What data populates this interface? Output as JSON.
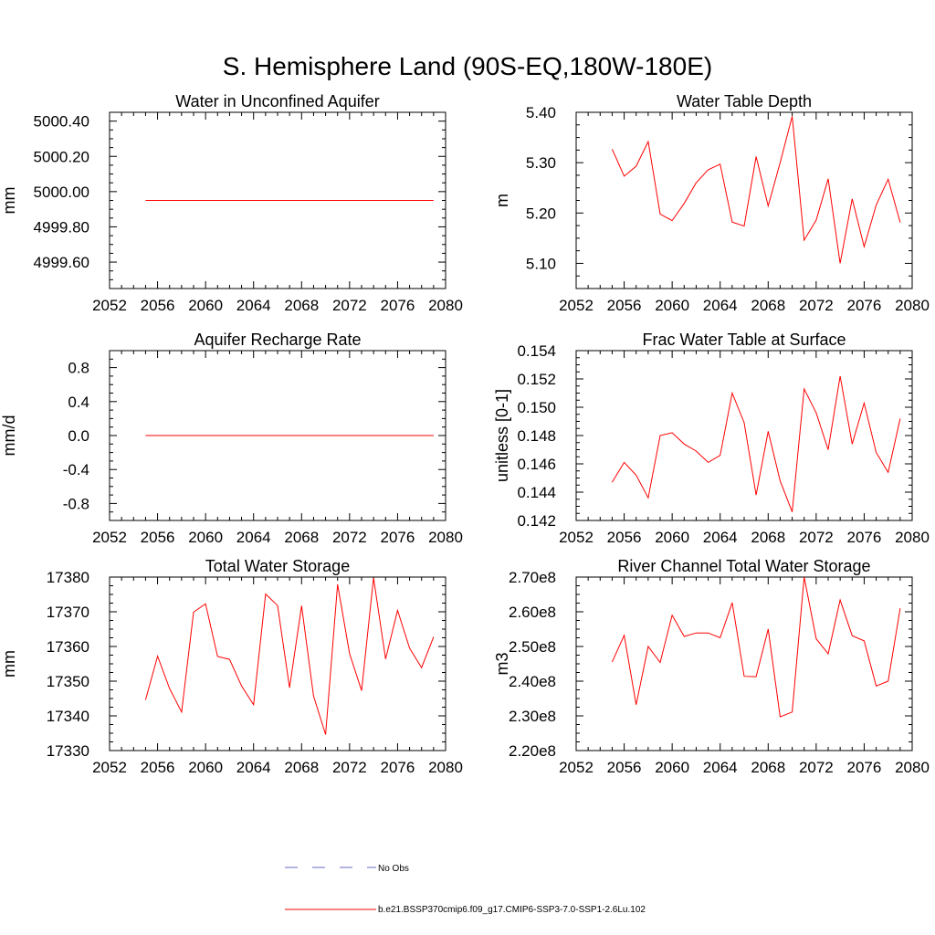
{
  "main_title": "S. Hemisphere Land (90S-EQ,180W-180E)",
  "legend": {
    "obs_label": "No Obs",
    "obs_color": "#6a6ac8",
    "model_label": "b.e21.BSSP370cmip6.f09_g17.CMIP6-SSP3-7.0-SSP1-2.6Lu.102",
    "model_color": "#ff0000"
  },
  "chart_data": [
    {
      "type": "line",
      "title": "Water in Unconfined Aquifer",
      "ylabel": "mm",
      "xlim": [
        2052,
        2080
      ],
      "ylim": [
        4999.45,
        5000.45
      ],
      "xticks": [
        "2052",
        "2056",
        "2060",
        "2064",
        "2068",
        "2072",
        "2076",
        "2080"
      ],
      "yticks": [
        {
          "v": 5000.4,
          "label": "5000.40"
        },
        {
          "v": 5000.2,
          "label": "5000.20"
        },
        {
          "v": 5000.0,
          "label": "5000.00"
        },
        {
          "v": 4999.8,
          "label": "4999.80"
        },
        {
          "v": 4999.6,
          "label": "4999.60"
        }
      ],
      "x": [
        2055,
        2056,
        2057,
        2058,
        2059,
        2060,
        2061,
        2062,
        2063,
        2064,
        2065,
        2066,
        2067,
        2068,
        2069,
        2070,
        2071,
        2072,
        2073,
        2074,
        2075,
        2076,
        2077,
        2078,
        2079
      ],
      "values": [
        4999.95,
        4999.95,
        4999.95,
        4999.95,
        4999.95,
        4999.95,
        4999.95,
        4999.95,
        4999.95,
        4999.95,
        4999.95,
        4999.95,
        4999.95,
        4999.95,
        4999.95,
        4999.95,
        4999.95,
        4999.95,
        4999.95,
        4999.95,
        4999.95,
        4999.95,
        4999.95,
        4999.95,
        4999.95
      ]
    },
    {
      "type": "line",
      "title": "Water Table Depth",
      "ylabel": "m",
      "xlim": [
        2052,
        2080
      ],
      "ylim": [
        5.05,
        5.4
      ],
      "xticks": [
        "2052",
        "2056",
        "2060",
        "2064",
        "2068",
        "2072",
        "2076",
        "2080"
      ],
      "yticks": [
        {
          "v": 5.4,
          "label": "5.40"
        },
        {
          "v": 5.3,
          "label": "5.30"
        },
        {
          "v": 5.2,
          "label": "5.20"
        },
        {
          "v": 5.1,
          "label": "5.10"
        }
      ],
      "x": [
        2055,
        2056,
        2057,
        2058,
        2059,
        2060,
        2061,
        2062,
        2063,
        2064,
        2065,
        2066,
        2067,
        2068,
        2069,
        2070,
        2071,
        2072,
        2073,
        2074,
        2075,
        2076,
        2077,
        2078,
        2079
      ],
      "values": [
        5.327,
        5.273,
        5.293,
        5.342,
        5.198,
        5.185,
        5.219,
        5.26,
        5.286,
        5.297,
        5.182,
        5.174,
        5.312,
        5.214,
        5.3,
        5.392,
        5.146,
        5.186,
        5.268,
        5.1,
        5.228,
        5.133,
        5.216,
        5.267,
        5.181
      ]
    },
    {
      "type": "line",
      "title": "Aquifer Recharge Rate",
      "ylabel": "mm/d",
      "xlim": [
        2052,
        2080
      ],
      "ylim": [
        -1.0,
        1.0
      ],
      "xticks": [
        "2052",
        "2056",
        "2060",
        "2064",
        "2068",
        "2072",
        "2076",
        "2080"
      ],
      "yticks": [
        {
          "v": 0.8,
          "label": "0.8"
        },
        {
          "v": 0.4,
          "label": "0.4"
        },
        {
          "v": 0.0,
          "label": "0.0"
        },
        {
          "v": -0.4,
          "label": "-0.4"
        },
        {
          "v": -0.8,
          "label": "-0.8"
        }
      ],
      "x": [
        2055,
        2056,
        2057,
        2058,
        2059,
        2060,
        2061,
        2062,
        2063,
        2064,
        2065,
        2066,
        2067,
        2068,
        2069,
        2070,
        2071,
        2072,
        2073,
        2074,
        2075,
        2076,
        2077,
        2078,
        2079
      ],
      "values": [
        0,
        0,
        0,
        0,
        0,
        0,
        0,
        0,
        0,
        0,
        0,
        0,
        0,
        0,
        0,
        0,
        0,
        0,
        0,
        0,
        0,
        0,
        0,
        0,
        0
      ]
    },
    {
      "type": "line",
      "title": "Frac Water Table at Surface",
      "ylabel": "unitless [0-1]",
      "xlim": [
        2052,
        2080
      ],
      "ylim": [
        0.142,
        0.154
      ],
      "xticks": [
        "2052",
        "2056",
        "2060",
        "2064",
        "2068",
        "2072",
        "2076",
        "2080"
      ],
      "yticks": [
        {
          "v": 0.154,
          "label": "0.154"
        },
        {
          "v": 0.152,
          "label": "0.152"
        },
        {
          "v": 0.15,
          "label": "0.150"
        },
        {
          "v": 0.148,
          "label": "0.148"
        },
        {
          "v": 0.146,
          "label": "0.146"
        },
        {
          "v": 0.144,
          "label": "0.144"
        },
        {
          "v": 0.142,
          "label": "0.142"
        }
      ],
      "x": [
        2055,
        2056,
        2057,
        2058,
        2059,
        2060,
        2061,
        2062,
        2063,
        2064,
        2065,
        2066,
        2067,
        2068,
        2069,
        2070,
        2071,
        2072,
        2073,
        2074,
        2075,
        2076,
        2077,
        2078,
        2079
      ],
      "values": [
        0.1447,
        0.1461,
        0.1452,
        0.1436,
        0.148,
        0.1482,
        0.1474,
        0.1469,
        0.1461,
        0.1466,
        0.151,
        0.1489,
        0.1438,
        0.1483,
        0.1448,
        0.1426,
        0.1513,
        0.1496,
        0.147,
        0.1522,
        0.1474,
        0.1503,
        0.1468,
        0.1454,
        0.1492
      ]
    },
    {
      "type": "line",
      "title": "Total Water Storage",
      "ylabel": "mm",
      "xlim": [
        2052,
        2080
      ],
      "ylim": [
        17330,
        17380
      ],
      "xticks": [
        "2052",
        "2056",
        "2060",
        "2064",
        "2068",
        "2072",
        "2076",
        "2080"
      ],
      "yticks": [
        {
          "v": 17380,
          "label": "17380"
        },
        {
          "v": 17370,
          "label": "17370"
        },
        {
          "v": 17360,
          "label": "17360"
        },
        {
          "v": 17350,
          "label": "17350"
        },
        {
          "v": 17340,
          "label": "17340"
        },
        {
          "v": 17330,
          "label": "17330"
        }
      ],
      "x": [
        2055,
        2056,
        2057,
        2058,
        2059,
        2060,
        2061,
        2062,
        2063,
        2064,
        2065,
        2066,
        2067,
        2068,
        2069,
        2070,
        2071,
        2072,
        2073,
        2074,
        2075,
        2076,
        2077,
        2078,
        2079
      ],
      "values": [
        17344.6,
        17357.2,
        17347.9,
        17341.1,
        17369.9,
        17372.3,
        17357.1,
        17356.3,
        17348.6,
        17343.2,
        17375.1,
        17371.8,
        17348.1,
        17371.7,
        17345.7,
        17334.6,
        17377.9,
        17357.9,
        17347.3,
        17379.8,
        17356.4,
        17370.4,
        17359.5,
        17353.9,
        17362.8
      ]
    },
    {
      "type": "line",
      "title": "River Channel Total Water Storage",
      "ylabel": "m3",
      "xlim": [
        2052,
        2080
      ],
      "ylim": [
        220000000.0,
        270000000.0
      ],
      "xticks": [
        "2052",
        "2056",
        "2060",
        "2064",
        "2068",
        "2072",
        "2076",
        "2080"
      ],
      "yticks": [
        {
          "v": 270000000.0,
          "label": "2.70e8"
        },
        {
          "v": 260000000.0,
          "label": "2.60e8"
        },
        {
          "v": 250000000.0,
          "label": "2.50e8"
        },
        {
          "v": 240000000.0,
          "label": "2.40e8"
        },
        {
          "v": 230000000.0,
          "label": "2.30e8"
        },
        {
          "v": 220000000.0,
          "label": "2.20e8"
        }
      ],
      "x": [
        2055,
        2056,
        2057,
        2058,
        2059,
        2060,
        2061,
        2062,
        2063,
        2064,
        2065,
        2066,
        2067,
        2068,
        2069,
        2070,
        2071,
        2072,
        2073,
        2074,
        2075,
        2076,
        2077,
        2078,
        2079
      ],
      "values": [
        245500000.0,
        253200000.0,
        233200000.0,
        250000000.0,
        245400000.0,
        259000000.0,
        252900000.0,
        253900000.0,
        253900000.0,
        252500000.0,
        262600000.0,
        241400000.0,
        241300000.0,
        255000000.0,
        229700000.0,
        231100000.0,
        270000000.0,
        252200000.0,
        247900000.0,
        263400000.0,
        253100000.0,
        251600000.0,
        238600000.0,
        240000000.0,
        261000000.0
      ]
    }
  ]
}
